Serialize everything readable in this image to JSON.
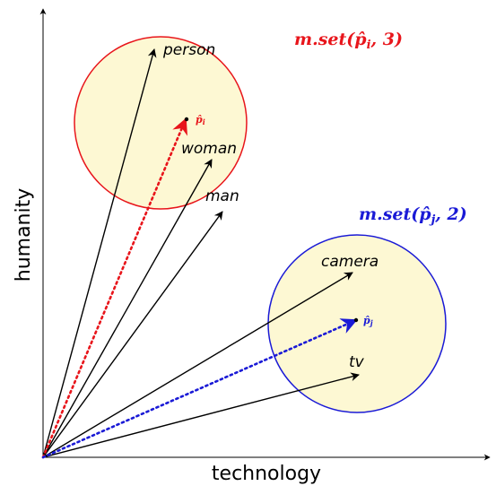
{
  "axes": {
    "x_label": "technology",
    "y_label": "humanity"
  },
  "colors": {
    "red": "#e8151b",
    "blue": "#1a1ad6",
    "fill": "#fdf8d3",
    "black": "#000000"
  },
  "sets": {
    "i": {
      "label_fn": "m.set(",
      "label_var": "p̂",
      "label_sub": "i",
      "label_rest": ", 3)",
      "point_label": "p̂",
      "point_sub": "i"
    },
    "j": {
      "label_fn": "m.set(",
      "label_var": "p̂",
      "label_sub": "j",
      "label_rest": ", 2)",
      "point_label": "p̂",
      "point_sub": "j"
    }
  },
  "words": {
    "person": "person",
    "woman": "woman",
    "man": "man",
    "camera": "camera",
    "tv": "tv"
  }
}
